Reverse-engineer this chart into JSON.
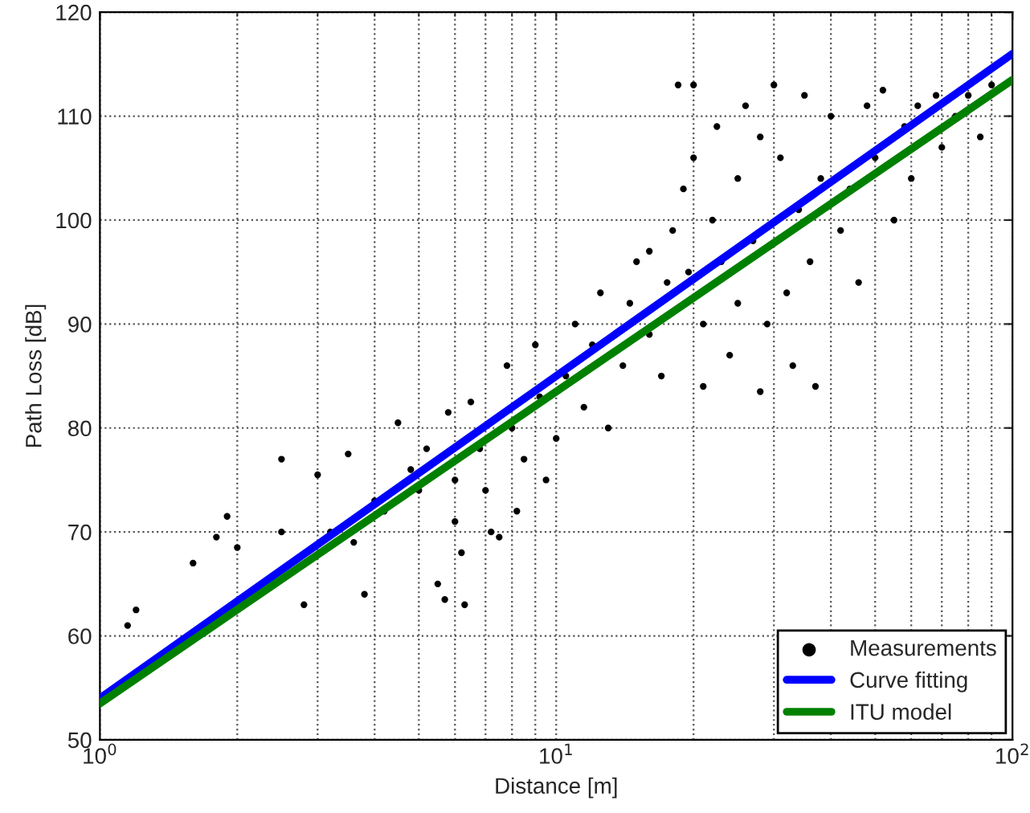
{
  "chart_data": {
    "type": "scatter",
    "xlabel": "Distance [m]",
    "ylabel": "Path Loss [dB]",
    "log": "x",
    "grid": true,
    "legend": "bottom right",
    "xlim": [
      1,
      100
    ],
    "xticks": [
      {
        "value": 1,
        "label": "10$^{0}$"
      },
      {
        "value": 10,
        "label": "10$^{1}$"
      },
      {
        "value": 100,
        "label": "10$^{2}$"
      }
    ],
    "ylim": [
      50,
      120
    ],
    "yticks": [
      50,
      60,
      70,
      80,
      90,
      100,
      110,
      120
    ],
    "series": [
      {
        "name": "Measurements",
        "marker": "circle",
        "color": "#000000",
        "x": [
          1.15,
          1.2,
          1.6,
          1.8,
          1.9,
          2.0,
          2.5,
          2.5,
          2.8,
          3.0,
          3.2,
          3.5,
          3.6,
          3.8,
          4.0,
          4.2,
          4.5,
          4.8,
          5.0,
          5.2,
          5.5,
          5.7,
          5.8,
          6,
          6,
          6.2,
          6.3,
          6.5,
          6.8,
          7,
          7.2,
          7.5,
          7.8,
          8,
          8.2,
          8.5,
          9,
          9.2,
          9.5,
          10,
          10.5,
          11,
          11.5,
          12,
          12.5,
          13,
          14,
          14.5,
          15,
          16,
          16,
          17,
          17.5,
          18,
          18.5,
          19,
          19.5,
          20,
          20,
          21,
          21,
          22,
          22.5,
          23,
          24,
          25,
          25,
          26,
          27,
          28,
          28,
          29,
          30,
          31,
          32,
          33,
          34,
          35,
          36,
          37,
          38,
          40,
          42,
          44,
          46,
          48,
          50,
          52,
          55,
          58,
          60,
          62,
          68,
          70,
          75,
          80,
          85,
          90
        ],
        "values": [
          61,
          62.5,
          67,
          69.5,
          71.5,
          68.5,
          77,
          70,
          63,
          75.5,
          70,
          77.5,
          69,
          64,
          73,
          72,
          80.5,
          76,
          74,
          78,
          65,
          63.5,
          81.5,
          75,
          71,
          68,
          63,
          82.5,
          78,
          74,
          70,
          69.5,
          86,
          80,
          72,
          77,
          88,
          83,
          75,
          79,
          85,
          90,
          82,
          88,
          93,
          80,
          86,
          92,
          96,
          97,
          89,
          85,
          94,
          99,
          113,
          103,
          95,
          113,
          106,
          84,
          90,
          100,
          109,
          96,
          87,
          104,
          92,
          111,
          98,
          83.5,
          108,
          90,
          113,
          106,
          93,
          86,
          101,
          112,
          96,
          84,
          104,
          110,
          99,
          103,
          94,
          111,
          106,
          112.5,
          100,
          109,
          104,
          111,
          112,
          107,
          110,
          112,
          108,
          113
        ]
      },
      {
        "name": "Curve fitting",
        "type": "line",
        "color": "#0000ff",
        "x": [
          1,
          100
        ],
        "values": [
          54,
          116
        ]
      },
      {
        "name": "ITU model",
        "type": "line",
        "color": "#008000",
        "x": [
          1,
          100
        ],
        "values": [
          53.5,
          113.5
        ]
      }
    ]
  }
}
